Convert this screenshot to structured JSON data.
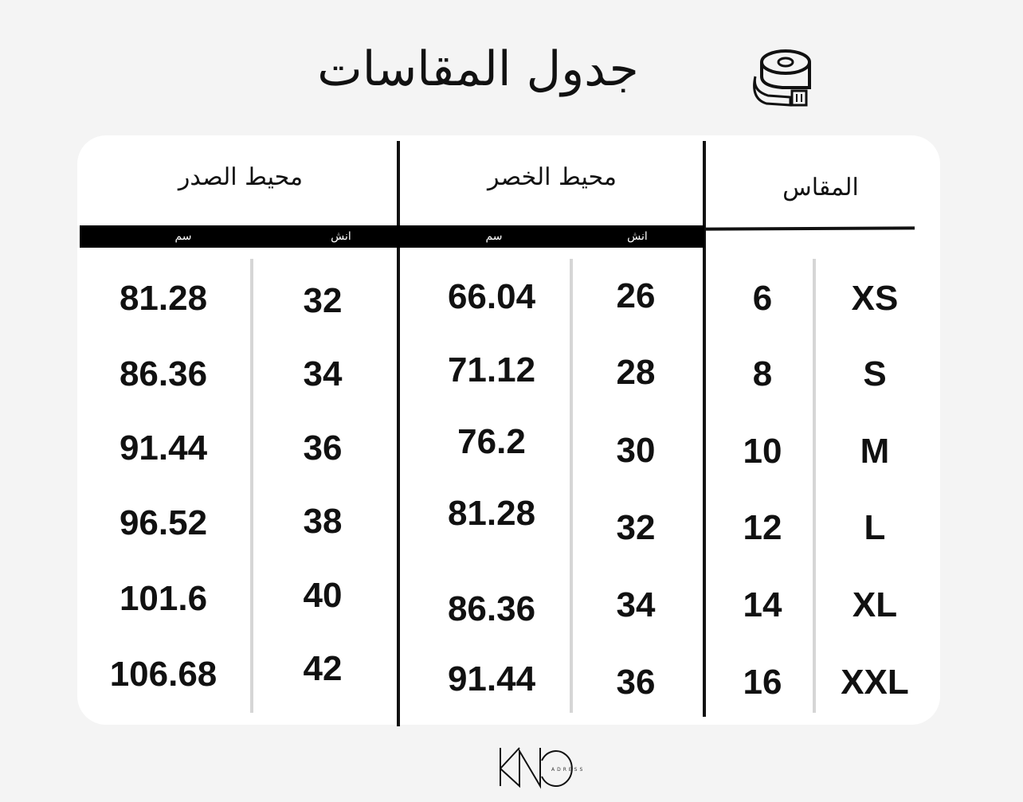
{
  "title": "جدول المقاسات",
  "icon": "tape-measure-icon",
  "headers": {
    "size": "المقاس",
    "waist": "محيط الخصر",
    "chest": "محيط الصدر"
  },
  "units": {
    "inch": "انش",
    "cm": "سم"
  },
  "rows": [
    {
      "size": "XS",
      "number": "6",
      "waist_inch": "26",
      "waist_cm": "66.04",
      "chest_inch": "32",
      "chest_cm": "81.28"
    },
    {
      "size": "S",
      "number": "8",
      "waist_inch": "28",
      "waist_cm": "71.12",
      "chest_inch": "34",
      "chest_cm": "86.36"
    },
    {
      "size": "M",
      "number": "10",
      "waist_inch": "30",
      "waist_cm": "76.2",
      "chest_inch": "36",
      "chest_cm": "91.44"
    },
    {
      "size": "L",
      "number": "12",
      "waist_inch": "32",
      "waist_cm": "81.28",
      "chest_inch": "38",
      "chest_cm": "96.52"
    },
    {
      "size": "XL",
      "number": "14",
      "waist_inch": "34",
      "waist_cm": "86.36",
      "chest_inch": "40",
      "chest_cm": "101.6"
    },
    {
      "size": "XXL",
      "number": "16",
      "waist_inch": "36",
      "waist_cm": "91.44",
      "chest_inch": "42",
      "chest_cm": "106.68"
    }
  ],
  "logo": {
    "main": "KNO",
    "sub": "ADRESS"
  }
}
